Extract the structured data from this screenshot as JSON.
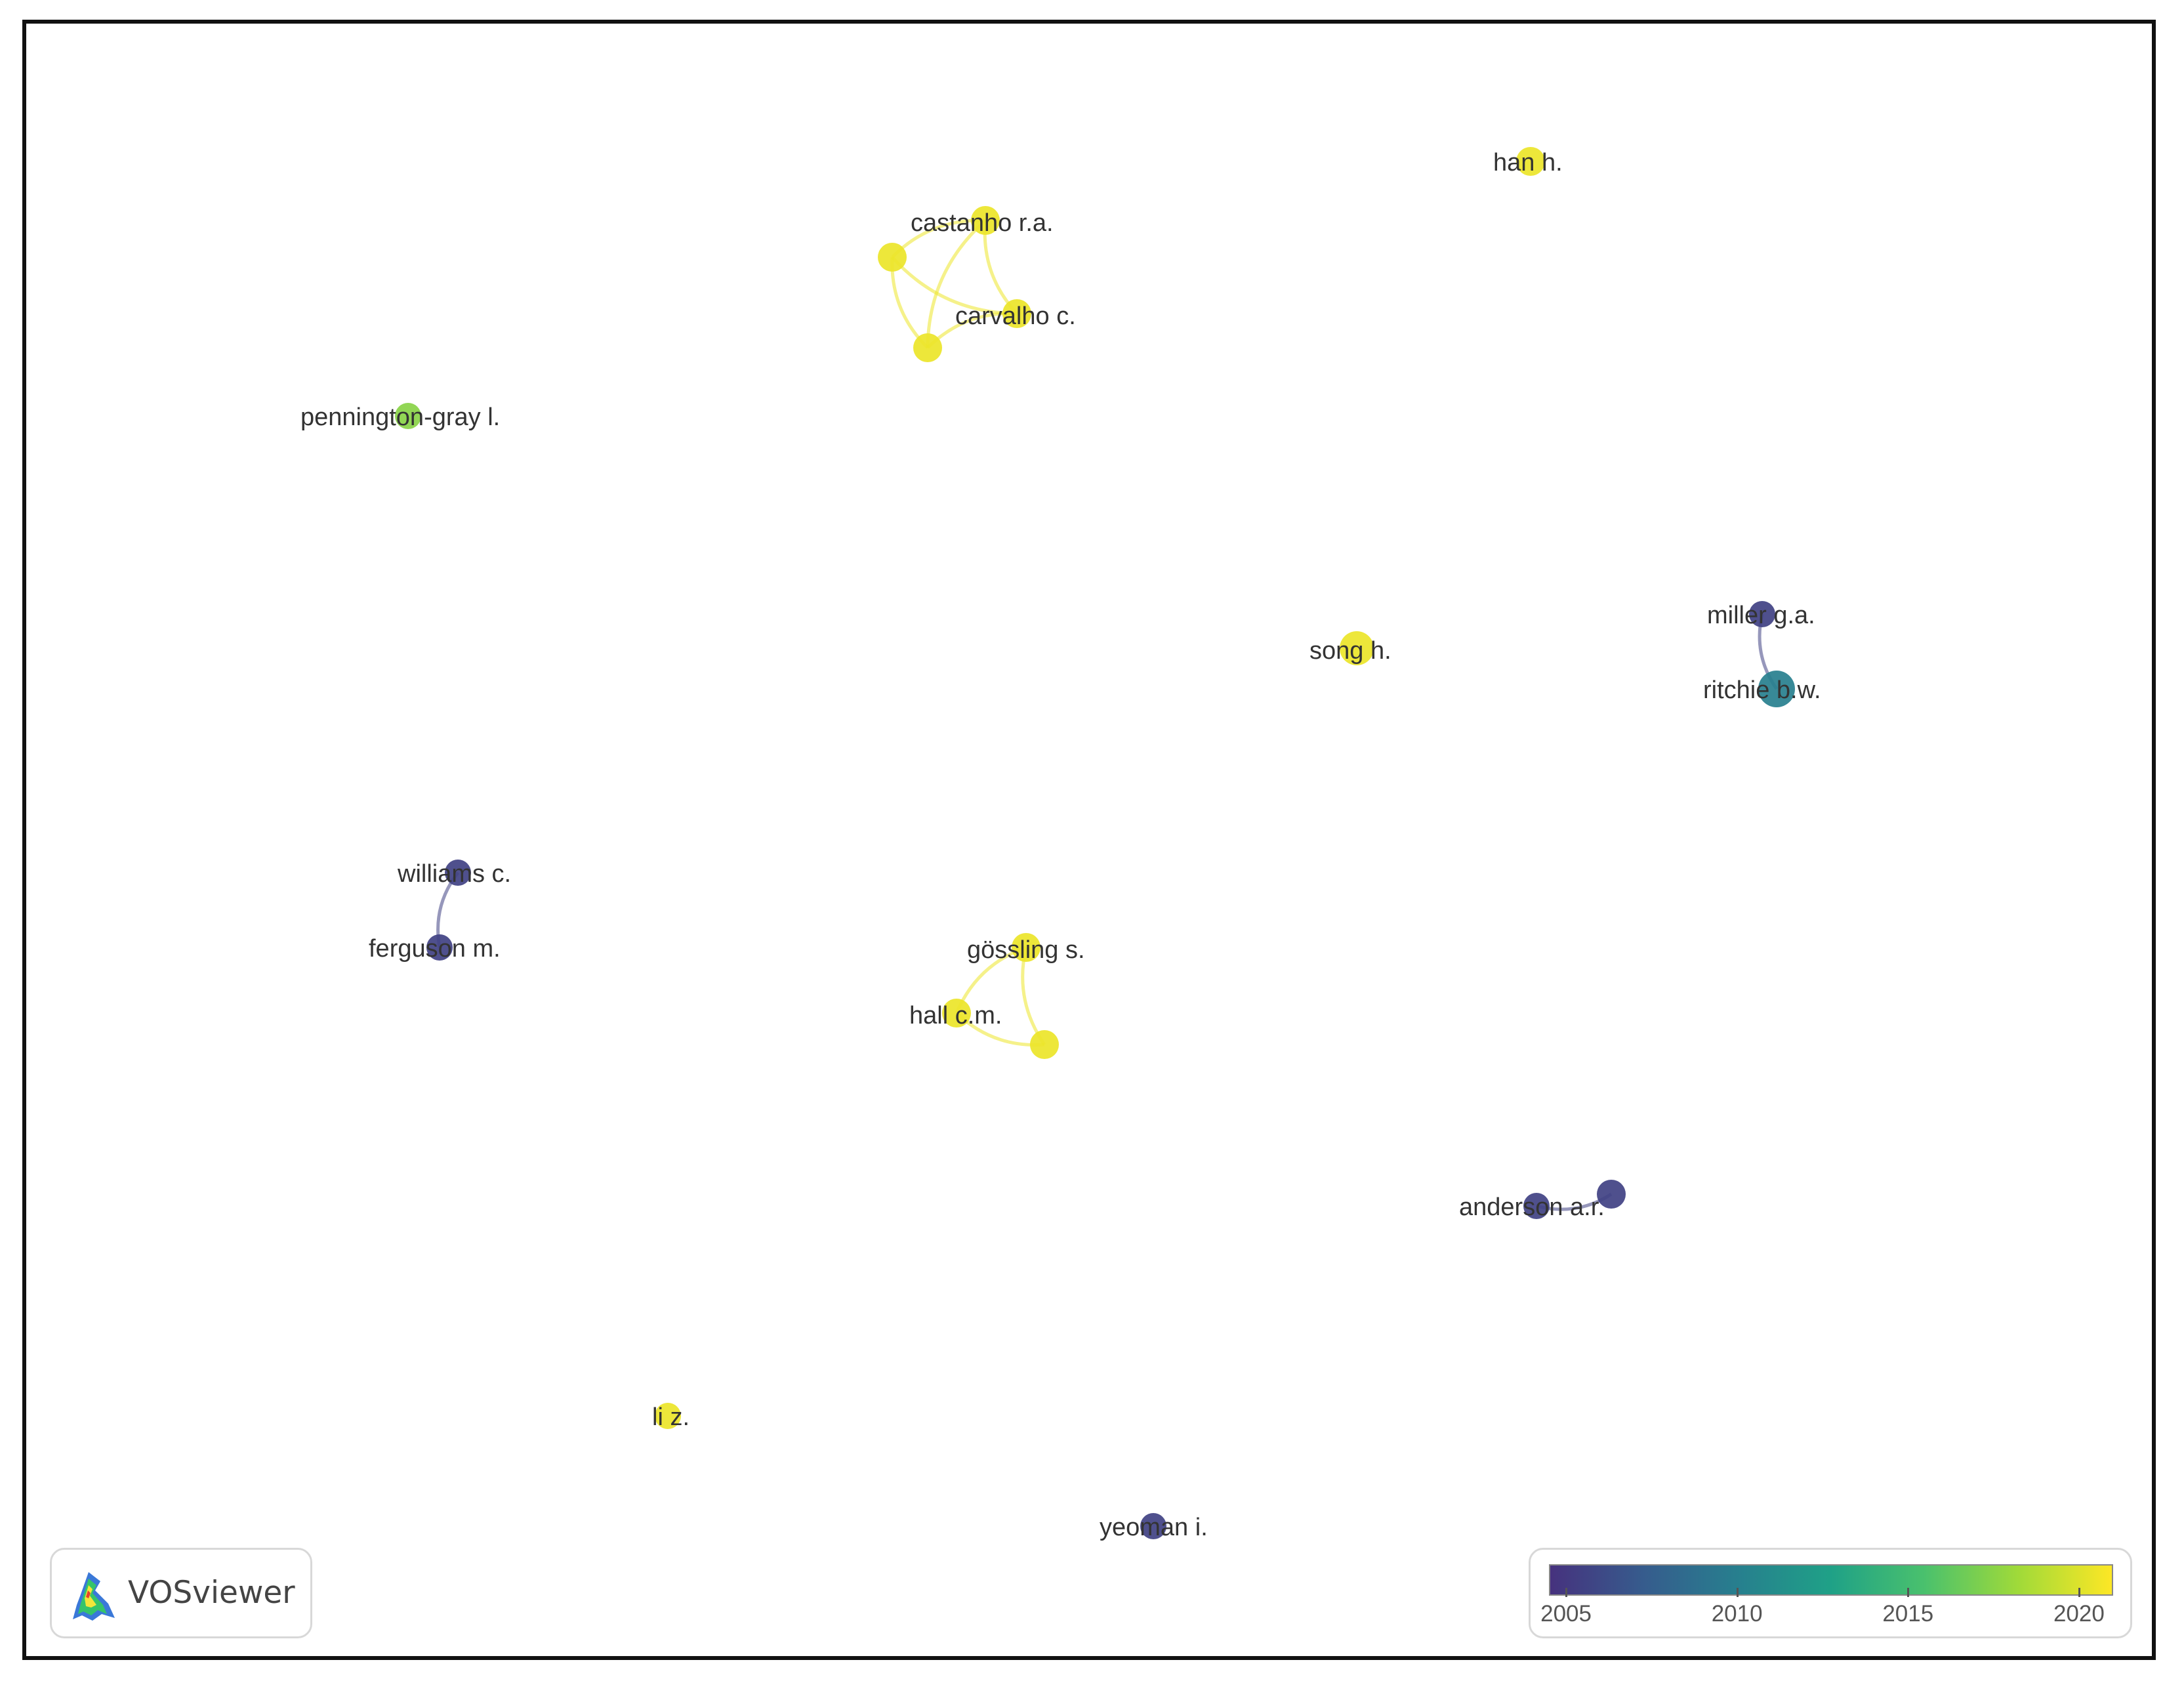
{
  "app": {
    "name": "VOSviewer"
  },
  "network": {
    "nodes": [
      {
        "id": "han",
        "label": "han h.",
        "year": 2020.5
      },
      {
        "id": "castanho",
        "label": "castanho r.a.",
        "year": 2020.5
      },
      {
        "id": "castanho_u1",
        "label": "",
        "year": 2020.5
      },
      {
        "id": "carvalho",
        "label": "carvalho c.",
        "year": 2020.5
      },
      {
        "id": "castanho_u2",
        "label": "",
        "year": 2020.5
      },
      {
        "id": "pennington",
        "label": "pennington-gray l.",
        "year": 2017.5
      },
      {
        "id": "song",
        "label": "song h.",
        "year": 2020.5
      },
      {
        "id": "miller",
        "label": "miller g.a.",
        "year": 2005.5
      },
      {
        "id": "ritchie",
        "label": "ritchie b.w.",
        "year": 2010
      },
      {
        "id": "williams",
        "label": "williams c.",
        "year": 2005.5
      },
      {
        "id": "ferguson",
        "label": "ferguson m.",
        "year": 2005.5
      },
      {
        "id": "gossling",
        "label": "gössling s.",
        "year": 2020.5
      },
      {
        "id": "hall",
        "label": "hall c.m.",
        "year": 2020.5
      },
      {
        "id": "gossling_u1",
        "label": "",
        "year": 2020.5
      },
      {
        "id": "anderson",
        "label": "anderson a.r.",
        "year": 2005.5
      },
      {
        "id": "anderson_u1",
        "label": "",
        "year": 2005.5
      },
      {
        "id": "li",
        "label": "li z.",
        "year": 2020.5
      },
      {
        "id": "yeoman",
        "label": "yeoman i.",
        "year": 2005.5
      }
    ],
    "links": [
      [
        "castanho",
        "castanho_u1"
      ],
      [
        "castanho",
        "carvalho"
      ],
      [
        "castanho",
        "castanho_u2"
      ],
      [
        "castanho_u1",
        "carvalho"
      ],
      [
        "castanho_u1",
        "castanho_u2"
      ],
      [
        "carvalho",
        "castanho_u2"
      ],
      [
        "miller",
        "ritchie"
      ],
      [
        "williams",
        "ferguson"
      ],
      [
        "gossling",
        "hall"
      ],
      [
        "gossling",
        "gossling_u1"
      ],
      [
        "hall",
        "gossling_u1"
      ],
      [
        "anderson",
        "anderson_u1"
      ]
    ]
  },
  "legend": {
    "ticks": [
      "2005",
      "2010",
      "2015",
      "2020"
    ],
    "range": [
      2004.5,
      2021
    ],
    "colors": [
      "#46327e",
      "#365c8d",
      "#277f8e",
      "#1fa187",
      "#4ac16d",
      "#a0da39",
      "#fde725"
    ]
  },
  "colors": {
    "yellow": "#f2e63a",
    "green": "#b9dd2e",
    "purple": "#8a86cc",
    "teal": "#5a9dbd"
  }
}
